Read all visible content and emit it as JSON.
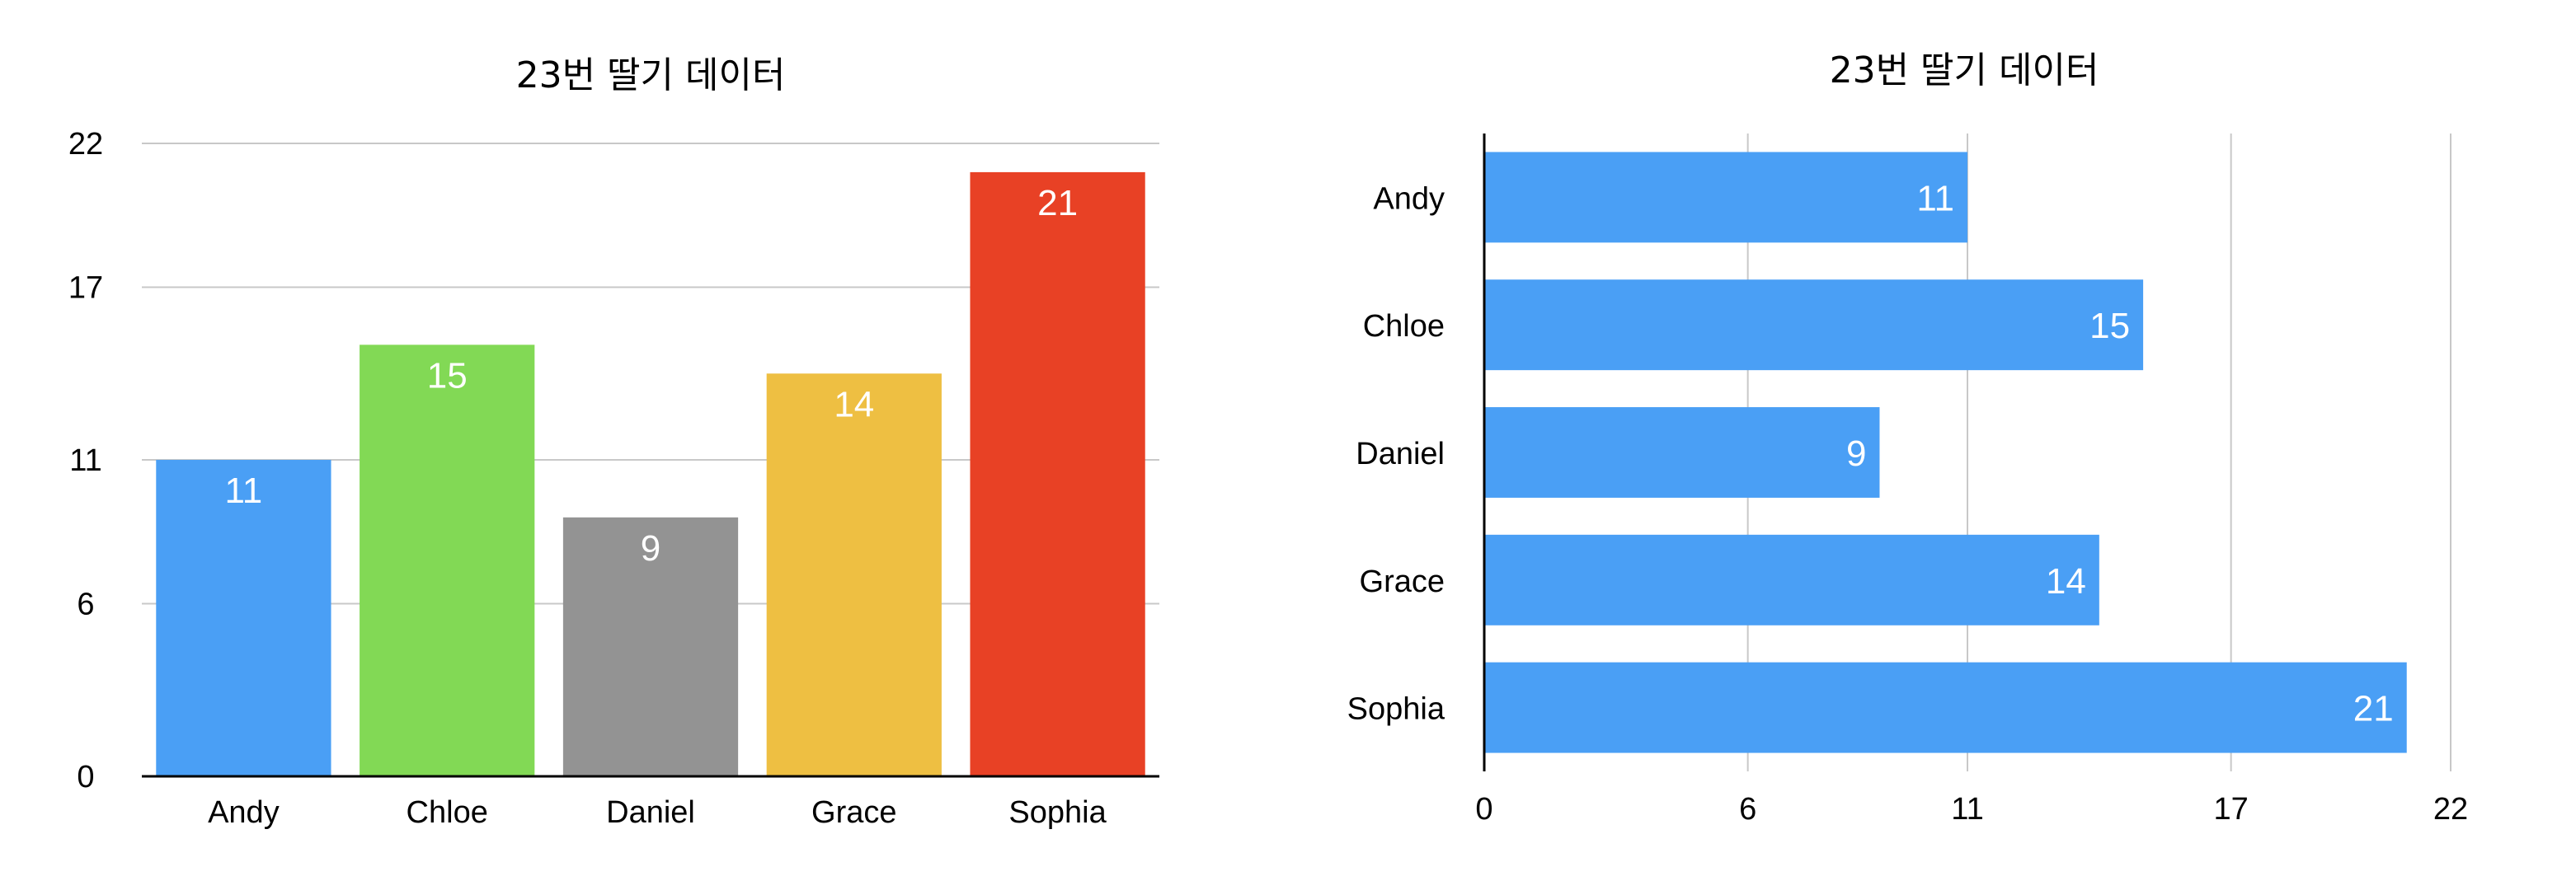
{
  "chart_data": [
    {
      "type": "bar",
      "orientation": "vertical",
      "title": "23번 딸기 데이터",
      "xlabel": "",
      "ylabel": "",
      "categories": [
        "Andy",
        "Chloe",
        "Daniel",
        "Grace",
        "Sophia"
      ],
      "values": [
        11,
        15,
        9,
        14,
        21
      ],
      "bar_colors": [
        "#4a9ff5",
        "#82d955",
        "#939393",
        "#eebf42",
        "#e84125"
      ],
      "ylim": [
        0,
        22
      ],
      "yticks": [
        0,
        6,
        11,
        17,
        22
      ],
      "grid": true,
      "data_labels": true,
      "legend": false
    },
    {
      "type": "bar",
      "orientation": "horizontal",
      "title": "23번 딸기 데이터",
      "xlabel": "",
      "ylabel": "",
      "categories": [
        "Andy",
        "Chloe",
        "Daniel",
        "Grace",
        "Sophia"
      ],
      "values": [
        11,
        15,
        9,
        14,
        21
      ],
      "bar_color": "#4a9ff5",
      "xlim": [
        0,
        22
      ],
      "xticks": [
        0,
        6,
        11,
        17,
        22
      ],
      "grid": true,
      "data_labels": true,
      "legend": false
    }
  ]
}
